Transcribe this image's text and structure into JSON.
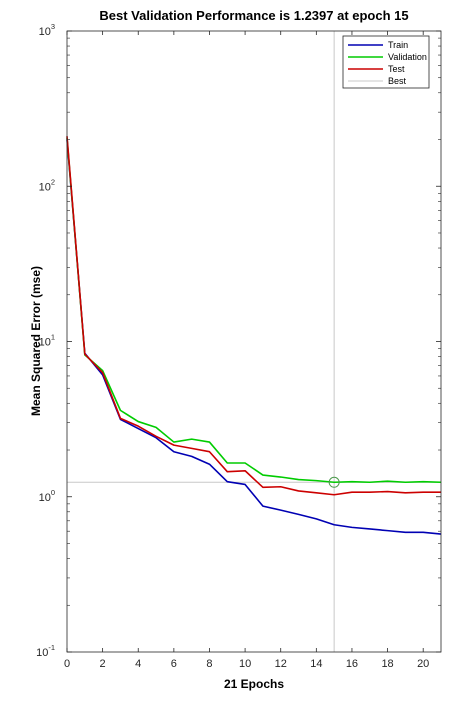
{
  "chart_data": {
    "type": "line",
    "title": "Best Validation Performance is 1.2397 at epoch 15",
    "xlabel": "21 Epochs",
    "ylabel": "Mean Squared Error  (mse)",
    "xlim": [
      0,
      21
    ],
    "ylim": [
      0.1,
      1000
    ],
    "yscale": "log",
    "x_ticks": [
      0,
      2,
      4,
      6,
      8,
      10,
      12,
      14,
      16,
      18,
      20
    ],
    "y_ticks": [
      {
        "base": "10",
        "exp": "-1",
        "value": 0.1
      },
      {
        "base": "10",
        "exp": "0",
        "value": 1
      },
      {
        "base": "10",
        "exp": "1",
        "value": 10
      },
      {
        "base": "10",
        "exp": "2",
        "value": 100
      },
      {
        "base": "10",
        "exp": "3",
        "value": 1000
      }
    ],
    "legend_position": "top-right",
    "x": [
      0,
      1,
      2,
      3,
      4,
      5,
      6,
      7,
      8,
      9,
      10,
      11,
      12,
      13,
      14,
      15,
      16,
      17,
      18,
      19,
      20,
      21
    ],
    "series": [
      {
        "name": "Train",
        "color": "#0000b3",
        "values": [
          200,
          8.4,
          6.1,
          3.15,
          2.75,
          2.4,
          1.95,
          1.82,
          1.62,
          1.25,
          1.2,
          0.87,
          0.82,
          0.77,
          0.72,
          0.66,
          0.635,
          0.62,
          0.605,
          0.59,
          0.59,
          0.575
        ]
      },
      {
        "name": "Validation",
        "color": "#00cc00",
        "values": [
          205,
          8.2,
          6.5,
          3.6,
          3.05,
          2.8,
          2.25,
          2.35,
          2.25,
          1.65,
          1.65,
          1.38,
          1.34,
          1.29,
          1.27,
          1.2397,
          1.25,
          1.24,
          1.26,
          1.24,
          1.25,
          1.24
        ]
      },
      {
        "name": "Test",
        "color": "#cc0000",
        "values": [
          210,
          8.3,
          6.3,
          3.2,
          2.85,
          2.45,
          2.15,
          2.05,
          1.95,
          1.45,
          1.47,
          1.15,
          1.16,
          1.09,
          1.06,
          1.03,
          1.07,
          1.07,
          1.08,
          1.06,
          1.07,
          1.07
        ]
      }
    ],
    "best": {
      "name": "Best",
      "epoch": 15,
      "value": 1.2397,
      "color": "#c8c8c8"
    }
  }
}
